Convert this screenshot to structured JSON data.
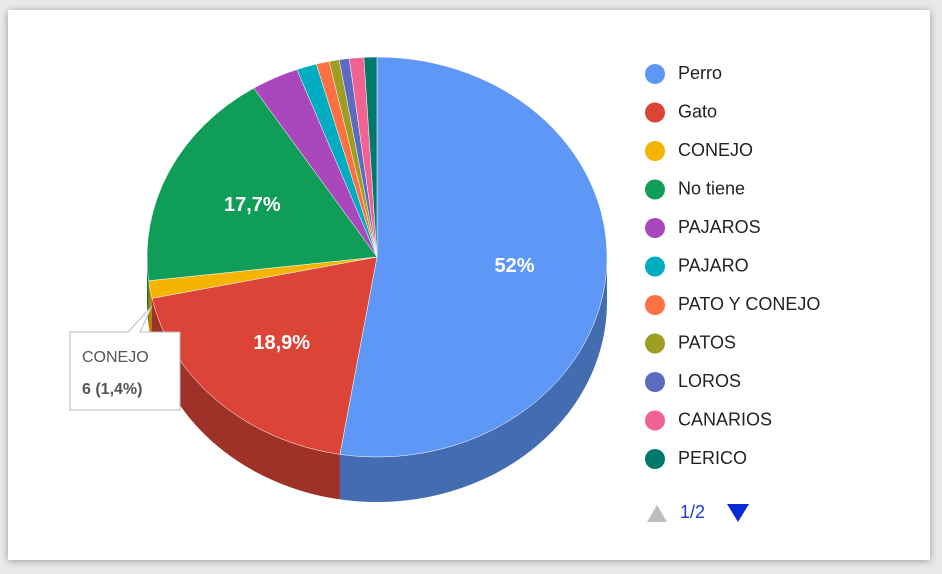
{
  "chart_data": {
    "type": "pie",
    "categories": [
      "Perro",
      "Gato",
      "CONEJO",
      "No tiene",
      "PAJAROS",
      "PAJARO",
      "PATO Y CONEJO",
      "PATOS",
      "LOROS",
      "CANARIOS",
      "PERICO"
    ],
    "values": [
      52,
      18.9,
      1.4,
      17.7,
      3.3,
      1.4,
      0.9,
      0.7,
      0.7,
      1,
      0.9
    ],
    "value_labels": [
      "52%",
      "18,9%",
      null,
      "17,7%",
      null,
      null,
      null,
      null,
      null,
      null,
      null
    ],
    "colors": [
      "#5e97f6",
      "#db4437",
      "#f4b400",
      "#0f9d58",
      "#ab47bc",
      "#00acc1",
      "#ff7043",
      "#9e9d24",
      "#5c6bc0",
      "#f06292",
      "#00796b"
    ],
    "tooltip": {
      "title": "CONEJO",
      "text": "6 (1,4%)"
    },
    "legend": {
      "page": "1/2"
    }
  }
}
